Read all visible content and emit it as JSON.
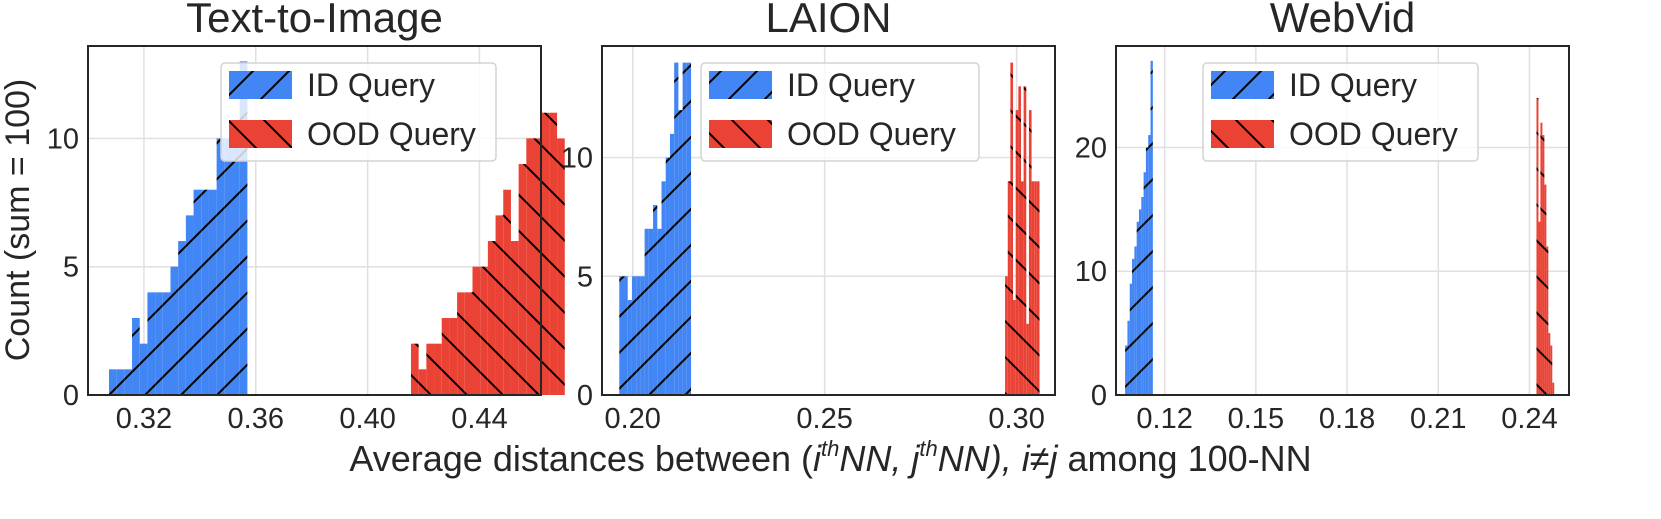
{
  "figure": {
    "ylabel": "Count (sum = 100)",
    "xlabel": {
      "prefix": "Average distances between (",
      "i": "i",
      "th1": "th",
      "nn1": "NN, ",
      "j": "j",
      "th2": "th",
      "nn2": "NN), ",
      "neq": "i≠j",
      "suffix": " among 100-NN"
    }
  },
  "colors": {
    "id": "#4285f4",
    "ood": "#ea4335",
    "grid": "#e0e0e0",
    "frame": "#262626"
  },
  "chart_data": [
    {
      "type": "histogram",
      "title": "Text-to-Image",
      "xlim": [
        0.3,
        0.462
      ],
      "ylim": [
        0,
        13.6
      ],
      "xticks": [
        "0.32",
        "0.36",
        "0.40",
        "0.44"
      ],
      "xtick_values": [
        0.32,
        0.36,
        0.4,
        0.44
      ],
      "yticks": [
        "0",
        "5",
        "10"
      ],
      "ytick_values": [
        0,
        5,
        10
      ],
      "legend": {
        "position": "upper-right-inside",
        "entries": [
          "ID Query",
          "OOD Query"
        ]
      },
      "grid": true,
      "series": [
        {
          "name": "ID Query",
          "bin_start": 0.3075,
          "bin_width": 0.00275,
          "values": [
            1,
            1,
            1,
            3,
            2,
            4,
            4,
            4,
            5,
            6,
            7,
            8,
            8,
            8,
            10,
            10,
            10,
            13
          ]
        },
        {
          "name": "OOD Query",
          "bin_start": 0.4155,
          "bin_width": 0.00275,
          "values": [
            2,
            1,
            2,
            2,
            3,
            3,
            4,
            4,
            5,
            5,
            6,
            7,
            8,
            6,
            9,
            10,
            10,
            11,
            11,
            10
          ]
        }
      ]
    },
    {
      "type": "histogram",
      "title": "LAION",
      "xlim": [
        0.192,
        0.31
      ],
      "ylim": [
        0,
        14.7
      ],
      "xticks": [
        "0.20",
        "0.25",
        "0.30"
      ],
      "xtick_values": [
        0.2,
        0.25,
        0.3
      ],
      "yticks": [
        "0",
        "5",
        "10"
      ],
      "ytick_values": [
        0,
        5,
        10
      ],
      "legend": {
        "position": "upper-right-inside",
        "entries": [
          "ID Query",
          "OOD Query"
        ]
      },
      "grid": true,
      "series": [
        {
          "name": "ID Query",
          "bin_start": 0.1965,
          "bin_width": 0.0011,
          "values": [
            5,
            5,
            4,
            5,
            5,
            5,
            7,
            7,
            8,
            7,
            9,
            10,
            11,
            14,
            12,
            14,
            14
          ]
        },
        {
          "name": "OOD Query",
          "bin_start": 0.297,
          "bin_width": 0.00069,
          "values": [
            5,
            9,
            14,
            4,
            12,
            13,
            9,
            13,
            3,
            12,
            9,
            9,
            9
          ]
        }
      ]
    },
    {
      "type": "histogram",
      "title": "WebVid",
      "xlim": [
        0.104,
        0.253
      ],
      "ylim": [
        0,
        28.2
      ],
      "xticks": [
        "0.12",
        "0.15",
        "0.18",
        "0.21",
        "0.24"
      ],
      "xtick_values": [
        0.12,
        0.15,
        0.18,
        0.21,
        0.24
      ],
      "yticks": [
        "0",
        "10",
        "20"
      ],
      "ytick_values": [
        0,
        10,
        20
      ],
      "legend": {
        "position": "upper-right-inside",
        "entries": [
          "ID Query",
          "OOD Query"
        ]
      },
      "grid": true,
      "series": [
        {
          "name": "ID Query",
          "bin_start": 0.107,
          "bin_width": 0.00076,
          "values": [
            4,
            6,
            9,
            11,
            12,
            14,
            15,
            16,
            18,
            20,
            21,
            27
          ]
        },
        {
          "name": "OOD Query",
          "bin_start": 0.2423,
          "bin_width": 0.00065,
          "values": [
            24,
            14,
            22,
            21,
            17,
            12,
            5,
            4,
            1
          ]
        }
      ]
    }
  ]
}
